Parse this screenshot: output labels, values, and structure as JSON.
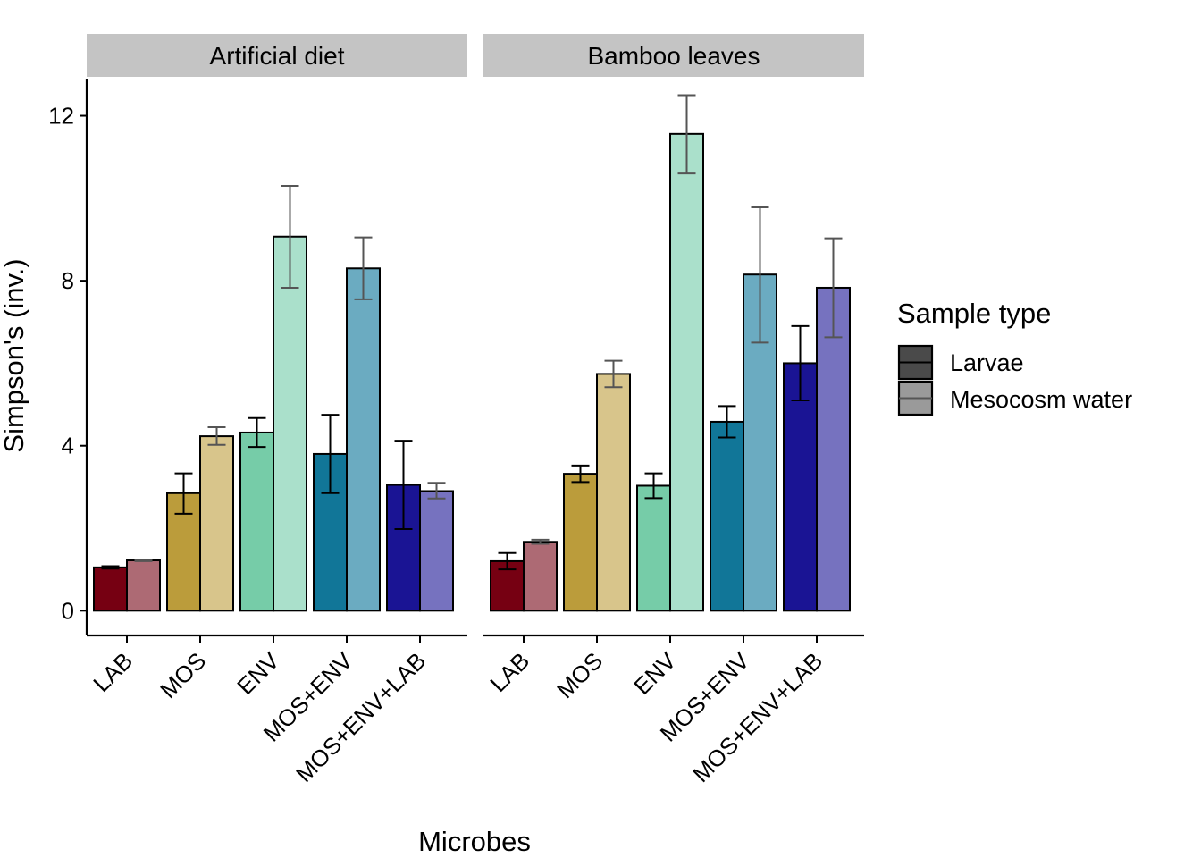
{
  "chart_data": {
    "type": "bar",
    "xlabel": "Microbes",
    "ylabel": "Simpson's (inv.)",
    "ylim": [
      -0.6,
      12.9
    ],
    "yticks": [
      0,
      4,
      8,
      12
    ],
    "grid": false,
    "legend": {
      "title": "Sample type",
      "position": "right",
      "entries": [
        "Larvae",
        "Mesocosm water"
      ]
    },
    "categories": [
      "LAB",
      "MOS",
      "ENV",
      "MOS+ENV",
      "MOS+ENV+LAB"
    ],
    "category_colors": {
      "LAB": {
        "Larvae": "#760012",
        "Mesocosm water": "#ad6a74"
      },
      "MOS": {
        "Larvae": "#bb9c3b",
        "Mesocosm water": "#d8c58b"
      },
      "ENV": {
        "Larvae": "#76cca8",
        "Mesocosm water": "#aae0cb"
      },
      "MOS+ENV": {
        "Larvae": "#117698",
        "Mesocosm water": "#6babc1"
      },
      "MOS+ENV+LAB": {
        "Larvae": "#1a1494",
        "Mesocosm water": "#7672bf"
      }
    },
    "panels": [
      {
        "title": "Artificial diet",
        "series": [
          {
            "name": "Larvae",
            "values": [
              1.05,
              2.85,
              4.32,
              3.8,
              3.05
            ],
            "err_low": [
              1.02,
              2.35,
              3.97,
              2.85,
              1.98
            ],
            "err_high": [
              1.08,
              3.33,
              4.67,
              4.75,
              4.12
            ]
          },
          {
            "name": "Mesocosm water",
            "values": [
              1.22,
              4.23,
              9.07,
              8.3,
              2.9
            ],
            "err_low": [
              1.2,
              4.02,
              7.83,
              7.55,
              2.72
            ],
            "err_high": [
              1.24,
              4.45,
              10.3,
              9.05,
              3.1
            ]
          }
        ]
      },
      {
        "title": "Bamboo leaves",
        "series": [
          {
            "name": "Larvae",
            "values": [
              1.2,
              3.32,
              3.03,
              4.58,
              6.0
            ],
            "err_low": [
              1.0,
              3.12,
              2.73,
              4.2,
              5.1
            ],
            "err_high": [
              1.4,
              3.52,
              3.33,
              4.96,
              6.9
            ]
          },
          {
            "name": "Mesocosm water",
            "values": [
              1.67,
              5.74,
              11.56,
              8.15,
              7.83
            ],
            "err_low": [
              1.62,
              5.42,
              10.6,
              6.5,
              6.63
            ],
            "err_high": [
              1.72,
              6.06,
              12.5,
              9.78,
              9.03
            ]
          }
        ]
      }
    ]
  }
}
